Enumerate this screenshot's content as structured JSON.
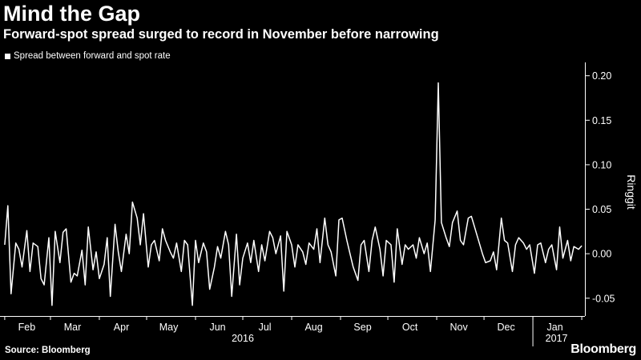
{
  "title": "Mind the Gap",
  "subtitle": "Forward-spot spread surged to record in November before narrowing",
  "source": "Source: Bloomberg",
  "brand": "Bloomberg",
  "colors": {
    "background": "#000000",
    "line": "#ffffff",
    "axis": "#ffffff"
  },
  "chart_data": {
    "type": "line",
    "title": "Mind the Gap",
    "subtitle": "Forward-spot spread surged to record in November before narrowing",
    "ylabel": "Ringgit",
    "ylim": [
      -0.07,
      0.215
    ],
    "yticks": [
      0.2,
      0.15,
      0.1,
      0.05,
      0.0,
      -0.05
    ],
    "ytick_labels": [
      "0.20",
      "0.15",
      "0.10",
      "0.05",
      "0.00",
      "-0.05"
    ],
    "x_start": "2016-01-29",
    "x_end": "2017-02-03",
    "month_labels": [
      {
        "label": "Feb",
        "date": "2016-02-15"
      },
      {
        "label": "Mar",
        "date": "2016-03-15"
      },
      {
        "label": "Apr",
        "date": "2016-04-15"
      },
      {
        "label": "May",
        "date": "2016-05-15"
      },
      {
        "label": "Jun",
        "date": "2016-06-15"
      },
      {
        "label": "Jul",
        "date": "2016-07-15"
      },
      {
        "label": "Aug",
        "date": "2016-08-15"
      },
      {
        "label": "Sep",
        "date": "2016-09-15"
      },
      {
        "label": "Oct",
        "date": "2016-10-15"
      },
      {
        "label": "Nov",
        "date": "2016-11-15"
      },
      {
        "label": "Dec",
        "date": "2016-12-15"
      },
      {
        "label": "Jan",
        "date": "2017-01-15"
      }
    ],
    "year_labels": [
      {
        "label": "2016",
        "date": "2016-07-01"
      },
      {
        "label": "2017",
        "date": "2017-01-16"
      }
    ],
    "year_divider": "2017-01-01",
    "legend": "Spread between forward and spot rate",
    "series": [
      {
        "name": "Spread between forward and spot rate",
        "x": [
          "2016-02-01",
          "2016-02-03",
          "2016-02-05",
          "2016-02-08",
          "2016-02-10",
          "2016-02-12",
          "2016-02-15",
          "2016-02-17",
          "2016-02-19",
          "2016-02-22",
          "2016-02-24",
          "2016-02-26",
          "2016-02-29",
          "2016-03-02",
          "2016-03-04",
          "2016-03-07",
          "2016-03-09",
          "2016-03-11",
          "2016-03-14",
          "2016-03-16",
          "2016-03-18",
          "2016-03-21",
          "2016-03-23",
          "2016-03-25",
          "2016-03-28",
          "2016-03-30",
          "2016-04-01",
          "2016-04-04",
          "2016-04-06",
          "2016-04-08",
          "2016-04-11",
          "2016-04-13",
          "2016-04-15",
          "2016-04-18",
          "2016-04-20",
          "2016-04-22",
          "2016-04-25",
          "2016-04-27",
          "2016-04-29",
          "2016-05-02",
          "2016-05-04",
          "2016-05-06",
          "2016-05-09",
          "2016-05-11",
          "2016-05-13",
          "2016-05-16",
          "2016-05-18",
          "2016-05-20",
          "2016-05-23",
          "2016-05-25",
          "2016-05-27",
          "2016-05-30",
          "2016-06-01",
          "2016-06-03",
          "2016-06-06",
          "2016-06-08",
          "2016-06-10",
          "2016-06-13",
          "2016-06-15",
          "2016-06-17",
          "2016-06-20",
          "2016-06-22",
          "2016-06-24",
          "2016-06-27",
          "2016-06-29",
          "2016-07-01",
          "2016-07-04",
          "2016-07-06",
          "2016-07-08",
          "2016-07-11",
          "2016-07-13",
          "2016-07-15",
          "2016-07-18",
          "2016-07-20",
          "2016-07-22",
          "2016-07-25",
          "2016-07-27",
          "2016-07-29",
          "2016-08-01",
          "2016-08-03",
          "2016-08-05",
          "2016-08-08",
          "2016-08-10",
          "2016-08-12",
          "2016-08-15",
          "2016-08-17",
          "2016-08-19",
          "2016-08-22",
          "2016-08-24",
          "2016-08-26",
          "2016-08-29",
          "2016-08-31",
          "2016-09-02",
          "2016-09-05",
          "2016-09-07",
          "2016-09-09",
          "2016-09-12",
          "2016-09-14",
          "2016-09-16",
          "2016-09-19",
          "2016-09-21",
          "2016-09-23",
          "2016-09-26",
          "2016-09-28",
          "2016-09-30",
          "2016-10-03",
          "2016-10-05",
          "2016-10-07",
          "2016-10-10",
          "2016-10-12",
          "2016-10-14",
          "2016-10-17",
          "2016-10-19",
          "2016-10-21",
          "2016-10-24",
          "2016-10-26",
          "2016-10-28",
          "2016-10-31",
          "2016-11-02",
          "2016-11-04",
          "2016-11-07",
          "2016-11-09",
          "2016-11-11",
          "2016-11-14",
          "2016-11-16",
          "2016-11-18",
          "2016-11-21",
          "2016-11-23",
          "2016-11-25",
          "2016-11-28",
          "2016-11-30",
          "2016-12-02",
          "2016-12-05",
          "2016-12-07",
          "2016-12-09",
          "2016-12-12",
          "2016-12-14",
          "2016-12-16",
          "2016-12-19",
          "2016-12-21",
          "2016-12-23",
          "2016-12-26",
          "2016-12-28",
          "2016-12-30",
          "2017-01-02",
          "2017-01-04",
          "2017-01-06",
          "2017-01-09",
          "2017-01-11",
          "2017-01-13",
          "2017-01-16",
          "2017-01-18",
          "2017-01-20",
          "2017-01-23",
          "2017-01-25",
          "2017-01-27",
          "2017-01-30",
          "2017-02-01"
        ],
        "y": [
          0.01,
          0.054,
          -0.045,
          0.012,
          0.005,
          -0.015,
          0.026,
          -0.02,
          0.012,
          0.008,
          -0.028,
          -0.035,
          0.018,
          -0.058,
          0.025,
          -0.01,
          0.024,
          0.028,
          -0.032,
          -0.022,
          -0.025,
          0.004,
          -0.035,
          0.03,
          -0.018,
          0.002,
          -0.028,
          -0.012,
          0.018,
          -0.048,
          0.033,
          0.002,
          -0.02,
          0.022,
          0.0,
          0.058,
          0.04,
          0.01,
          0.045,
          -0.015,
          0.01,
          0.015,
          -0.008,
          0.028,
          0.015,
          0.002,
          -0.005,
          0.012,
          -0.02,
          0.015,
          0.01,
          -0.058,
          0.015,
          -0.01,
          0.012,
          0.002,
          -0.04,
          -0.015,
          0.008,
          -0.005,
          0.025,
          0.01,
          -0.048,
          0.022,
          -0.035,
          -0.005,
          0.012,
          -0.01,
          0.015,
          -0.02,
          0.01,
          -0.008,
          0.025,
          0.018,
          0.0,
          0.02,
          -0.042,
          0.025,
          0.01,
          -0.015,
          0.01,
          0.002,
          -0.012,
          0.012,
          0.005,
          0.028,
          -0.01,
          0.04,
          0.01,
          0.002,
          -0.025,
          0.038,
          0.04,
          0.015,
          0.0,
          -0.015,
          -0.03,
          0.01,
          0.015,
          -0.02,
          0.015,
          0.03,
          0.005,
          -0.025,
          0.015,
          0.01,
          -0.032,
          0.028,
          -0.012,
          0.01,
          0.005,
          0.01,
          -0.005,
          0.018,
          0.0,
          0.012,
          -0.02,
          0.038,
          0.192,
          0.035,
          0.018,
          0.008,
          0.035,
          0.048,
          0.015,
          0.01,
          0.04,
          0.042,
          0.03,
          0.012,
          0.0,
          -0.01,
          -0.008,
          0.002,
          -0.018,
          0.04,
          0.015,
          0.012,
          -0.02,
          0.01,
          0.018,
          0.012,
          0.005,
          0.01,
          -0.022,
          0.01,
          0.012,
          -0.01,
          0.005,
          0.01,
          -0.018,
          0.03,
          -0.005,
          0.015,
          -0.008,
          0.008,
          0.005,
          0.009
        ]
      }
    ]
  }
}
